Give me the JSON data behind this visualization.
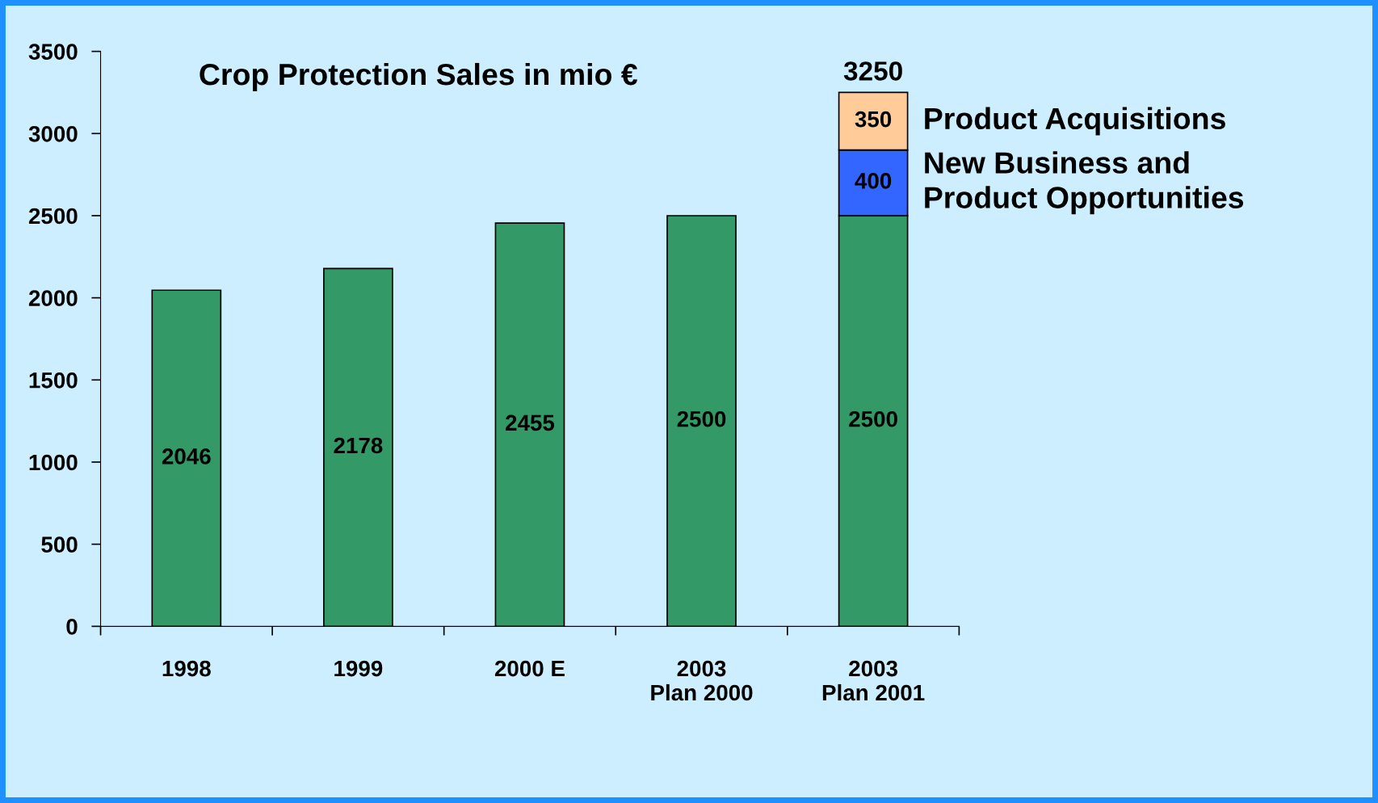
{
  "chart_data": {
    "type": "bar",
    "title": "Crop Protection Sales in mio €",
    "categories": [
      "1998",
      "1999",
      "2000 E",
      "2003\nPlan 2000",
      "2003\nPlan 2001"
    ],
    "stacked": true,
    "series": [
      {
        "color": "#339966",
        "values": [
          2046,
          2178,
          2455,
          2500,
          2500
        ]
      },
      {
        "name": "New Business and\nProduct Opportunities",
        "color": "#3366ff",
        "values": [
          null,
          null,
          null,
          null,
          400
        ]
      },
      {
        "name": "Product Acquisitions",
        "color": "#ffcc99",
        "values": [
          null,
          null,
          null,
          null,
          350
        ]
      }
    ],
    "totals": [
      null,
      null,
      null,
      null,
      "3250"
    ],
    "data_labels": true,
    "ylim": [
      0,
      3500
    ],
    "yticks": [
      0,
      500,
      1000,
      1500,
      2000,
      2500,
      3000,
      3500
    ],
    "grid": false
  }
}
